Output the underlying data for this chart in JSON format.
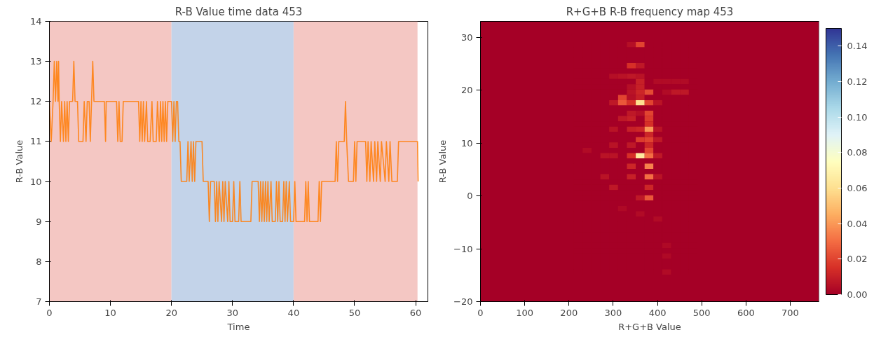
{
  "chart_data": [
    {
      "type": "line",
      "title": "R-B Value time data 453",
      "xlabel": "Time",
      "ylabel": "R-B Value",
      "xlim": [
        0,
        62
      ],
      "ylim": [
        7,
        14
      ],
      "xticks": [
        0,
        10,
        20,
        30,
        40,
        50,
        60
      ],
      "yticks": [
        7,
        8,
        9,
        10,
        11,
        12,
        13,
        14
      ],
      "grid": false,
      "bands": [
        {
          "axis": "x",
          "from": 0,
          "to": 20,
          "color": "#f4c7c3"
        },
        {
          "axis": "x",
          "from": 20,
          "to": 40,
          "color": "#c3d3e9"
        },
        {
          "axis": "x",
          "from": 40,
          "to": 60.3,
          "color": "#f4c7c3"
        }
      ],
      "series": [
        {
          "color": "#ff7f0e",
          "x": [
            0,
            0.3,
            0.6,
            0.8,
            1.0,
            1.2,
            1.4,
            1.5,
            1.6,
            1.8,
            2.0,
            2.3,
            2.5,
            2.7,
            2.9,
            3.1,
            3.3,
            3.8,
            4.0,
            4.2,
            4.6,
            4.8,
            5.5,
            5.7,
            6.0,
            6.2,
            6.5,
            6.7,
            6.9,
            7.1,
            7.3,
            9.0,
            9.2,
            9.3,
            11.0,
            11.2,
            11.4,
            11.6,
            11.9,
            12.1,
            14.6,
            14.8,
            15.0,
            15.2,
            15.4,
            15.6,
            15.9,
            16.1,
            16.5,
            16.8,
            17.0,
            17.5,
            17.7,
            18.0,
            18.2,
            18.4,
            18.6,
            18.8,
            19.0,
            19.2,
            19.4,
            20.0,
            20.2,
            20.4,
            20.6,
            20.8,
            21.0,
            21.2,
            21.4,
            21.6,
            22.5,
            22.7,
            22.9,
            23.2,
            23.4,
            23.6,
            23.8,
            24.0,
            25.0,
            25.2,
            26.0,
            26.2,
            26.4,
            27.0,
            27.2,
            27.4,
            27.6,
            27.8,
            28.2,
            28.4,
            28.6,
            28.8,
            29.2,
            29.4,
            29.6,
            30.0,
            30.2,
            30.4,
            31.0,
            31.2,
            31.4,
            33.0,
            33.2,
            34.2,
            34.4,
            34.6,
            34.8,
            35.0,
            35.2,
            35.4,
            35.6,
            35.8,
            36.0,
            36.3,
            36.5,
            37.0,
            37.2,
            37.4,
            37.6,
            37.8,
            38.2,
            38.4,
            38.6,
            38.8,
            39.0,
            39.3,
            39.5,
            40.0,
            40.2,
            40.4,
            41.8,
            42.0,
            42.2,
            42.4,
            42.6,
            44.0,
            44.2,
            44.4,
            44.6,
            45.5,
            46.8,
            47.0,
            47.2,
            47.4,
            48.3,
            48.5,
            48.7,
            49.0,
            49.8,
            50.0,
            50.2,
            50.4,
            51.8,
            52.0,
            52.2,
            52.5,
            52.7,
            53.1,
            53.3,
            53.6,
            53.8,
            54.2,
            54.4,
            55.0,
            55.2,
            55.6,
            55.8,
            56.1,
            57.0,
            57.2,
            60.3,
            60.4
          ],
          "values": [
            12,
            11,
            12,
            13,
            12,
            13,
            12,
            13,
            12,
            11,
            12,
            11,
            12,
            11,
            12,
            11,
            12,
            12,
            13,
            12,
            12,
            11,
            11,
            12,
            11,
            12,
            12,
            11,
            12,
            13,
            12,
            12,
            11,
            12,
            12,
            11,
            12,
            11,
            11,
            12,
            12,
            11,
            12,
            11,
            12,
            11,
            12,
            11,
            11,
            12,
            11,
            11,
            12,
            11,
            12,
            11,
            12,
            11,
            12,
            11,
            12,
            12,
            11,
            12,
            11,
            12,
            12,
            11,
            11,
            10,
            10,
            11,
            10,
            11,
            10,
            11,
            10,
            11,
            11,
            10,
            10,
            9,
            10,
            10,
            9,
            10,
            9,
            10,
            9,
            10,
            9,
            10,
            9,
            10,
            9,
            9,
            10,
            9,
            9,
            10,
            9,
            9,
            10,
            10,
            9,
            10,
            9,
            10,
            9,
            10,
            9,
            10,
            9,
            10,
            9,
            9,
            10,
            9,
            10,
            9,
            9,
            10,
            9,
            10,
            9,
            10,
            9,
            9,
            10,
            9,
            9,
            10,
            9,
            10,
            9,
            9,
            10,
            9,
            10,
            10,
            10,
            11,
            10,
            11,
            11,
            12,
            11,
            10,
            10,
            11,
            10,
            11,
            11,
            10,
            11,
            10,
            11,
            10,
            11,
            10,
            11,
            10,
            11,
            10,
            11,
            10,
            11,
            10,
            10,
            11,
            11,
            10
          ]
        }
      ]
    },
    {
      "type": "heatmap",
      "title": "R+G+B R-B frequency map 453",
      "xlabel": "R+G+B Value",
      "ylabel": "R-B Value",
      "xlim": [
        0,
        765
      ],
      "ylim": [
        -20,
        33
      ],
      "xticks": [
        0,
        100,
        200,
        300,
        400,
        500,
        600,
        700
      ],
      "yticks": [
        {
          "value": -20,
          "label": "−20"
        },
        {
          "value": -10,
          "label": "−10"
        },
        0,
        10,
        20,
        30
      ],
      "clim": [
        0,
        0.15
      ],
      "cticks": [
        {
          "value": 0,
          "label": "0.00"
        },
        {
          "value": 0.02,
          "label": "0.02"
        },
        {
          "value": 0.04,
          "label": "0.04"
        },
        {
          "value": 0.06,
          "label": "0.06"
        },
        {
          "value": 0.08,
          "label": "0.08"
        },
        {
          "value": 0.1,
          "label": "0.10"
        },
        {
          "value": 0.12,
          "label": "0.12"
        },
        {
          "value": 0.14,
          "label": "0.14"
        }
      ],
      "x": [
        221,
        241,
        261,
        281,
        301,
        321,
        341,
        361,
        381,
        401,
        421,
        441,
        461,
        481
      ],
      "y": [
        28.6,
        27.6,
        26.6,
        25.6,
        24.6,
        23.6,
        22.6,
        21.6,
        20.6,
        19.6,
        18.6,
        17.6,
        16.6,
        15.6,
        14.6,
        13.6,
        12.6,
        11.6,
        10.6,
        9.6,
        8.6,
        7.6,
        6.6,
        5.6,
        4.6,
        3.6,
        2.6,
        1.6,
        0.6,
        -0.4,
        -1.4,
        -2.4,
        -3.4,
        -4.4,
        -5.4,
        -6.4,
        -7.4,
        -8.4,
        -9.4,
        -10.4,
        -11.4,
        -12.4,
        -13.4,
        -14.4
      ],
      "cells": [
        [
          0,
          0,
          0,
          0,
          0,
          0,
          0.005,
          0.02,
          0,
          0,
          0,
          0,
          0,
          0
        ],
        [
          0,
          0,
          0,
          0,
          0,
          0,
          0,
          0,
          0,
          0,
          0,
          0,
          0,
          0
        ],
        [
          0,
          0,
          0,
          0,
          0,
          0,
          0,
          0,
          0,
          0,
          0,
          0,
          0,
          0
        ],
        [
          0,
          0,
          0,
          0,
          0,
          0,
          0,
          0,
          0,
          0,
          0,
          0,
          0,
          0
        ],
        [
          0,
          0,
          0,
          0,
          0,
          0,
          0.015,
          0.008,
          0,
          0,
          0,
          0,
          0,
          0
        ],
        [
          0,
          0,
          0,
          0,
          0,
          0,
          0,
          0,
          0,
          0,
          0,
          0,
          0,
          0
        ],
        [
          0,
          0,
          0,
          0,
          0.005,
          0.006,
          0.008,
          0.006,
          0,
          0,
          0,
          0,
          0,
          0
        ],
        [
          0,
          0,
          0,
          0,
          0,
          0,
          0,
          0.01,
          0,
          0.004,
          0.004,
          0.004,
          0.004,
          0
        ],
        [
          0,
          0,
          0,
          0,
          0,
          0,
          0.005,
          0.01,
          0,
          0,
          0,
          0,
          0,
          0
        ],
        [
          0,
          0,
          0,
          0,
          0,
          0,
          0.006,
          0.012,
          0.022,
          0,
          0.004,
          0.008,
          0.008,
          0
        ],
        [
          0,
          0,
          0,
          0,
          0,
          0.02,
          0.005,
          0.01,
          0,
          0,
          0,
          0,
          0,
          0
        ],
        [
          0,
          0,
          0,
          0,
          0.008,
          0.025,
          0.015,
          0.06,
          0.02,
          0.006,
          0,
          0,
          0,
          0
        ],
        [
          0,
          0,
          0,
          0,
          0,
          0,
          0,
          0,
          0,
          0,
          0,
          0,
          0,
          0
        ],
        [
          0,
          0,
          0,
          0,
          0,
          0,
          0.008,
          0.005,
          0.02,
          0,
          0,
          0,
          0,
          0
        ],
        [
          0,
          0,
          0,
          0,
          0,
          0.008,
          0.01,
          0,
          0.018,
          0,
          0,
          0,
          0,
          0
        ],
        [
          0,
          0,
          0,
          0,
          0,
          0,
          0,
          0,
          0.015,
          0,
          0,
          0,
          0,
          0
        ],
        [
          0,
          0,
          0,
          0,
          0.006,
          0,
          0.01,
          0.012,
          0.04,
          0.006,
          0,
          0,
          0,
          0
        ],
        [
          0,
          0,
          0,
          0,
          0,
          0,
          0,
          0,
          0.012,
          0,
          0,
          0,
          0,
          0
        ],
        [
          0,
          0,
          0,
          0,
          0,
          0,
          0,
          0.018,
          0.02,
          0.008,
          0,
          0,
          0,
          0
        ],
        [
          0,
          0,
          0,
          0,
          0.006,
          0,
          0.008,
          0,
          0.012,
          0,
          0,
          0,
          0,
          0
        ],
        [
          0,
          0.004,
          0,
          0,
          0,
          0,
          0,
          0,
          0.02,
          0,
          0,
          0,
          0,
          0
        ],
        [
          0,
          0,
          0,
          0.006,
          0.006,
          0,
          0.015,
          0.065,
          0.03,
          0.008,
          0,
          0,
          0,
          0
        ],
        [
          0,
          0,
          0,
          0,
          0,
          0,
          0,
          0,
          0,
          0,
          0,
          0,
          0,
          0
        ],
        [
          0,
          0,
          0,
          0,
          0,
          0,
          0.012,
          0,
          0.035,
          0,
          0,
          0,
          0,
          0
        ],
        [
          0,
          0,
          0,
          0,
          0,
          0,
          0,
          0,
          0,
          0,
          0,
          0,
          0,
          0
        ],
        [
          0,
          0,
          0,
          0.006,
          0,
          0,
          0.01,
          0,
          0.03,
          0.006,
          0,
          0,
          0,
          0
        ],
        [
          0,
          0,
          0,
          0,
          0,
          0,
          0,
          0,
          0,
          0,
          0,
          0,
          0,
          0
        ],
        [
          0,
          0,
          0,
          0,
          0.008,
          0,
          0,
          0,
          0.012,
          0,
          0,
          0,
          0,
          0
        ],
        [
          0,
          0,
          0,
          0,
          0,
          0,
          0,
          0,
          0,
          0,
          0,
          0,
          0,
          0
        ],
        [
          0,
          0,
          0,
          0,
          0,
          0,
          0,
          0.008,
          0.025,
          0,
          0,
          0,
          0,
          0
        ],
        [
          0,
          0,
          0,
          0,
          0,
          0,
          0,
          0,
          0,
          0,
          0,
          0,
          0,
          0
        ],
        [
          0,
          0,
          0,
          0,
          0,
          0.003,
          0,
          0,
          0,
          0,
          0,
          0,
          0,
          0
        ],
        [
          0,
          0,
          0,
          0,
          0,
          0,
          0,
          0.004,
          0,
          0,
          0,
          0,
          0,
          0
        ],
        [
          0,
          0,
          0,
          0,
          0,
          0,
          0,
          0,
          0,
          0.004,
          0,
          0,
          0,
          0
        ],
        [
          0,
          0,
          0,
          0,
          0,
          0,
          0,
          0,
          0,
          0,
          0,
          0,
          0,
          0
        ],
        [
          0,
          0,
          0,
          0,
          0,
          0,
          0,
          0,
          0,
          0,
          0,
          0,
          0,
          0
        ],
        [
          0,
          0,
          0,
          0,
          0,
          0,
          0,
          0,
          0,
          0,
          0,
          0,
          0,
          0
        ],
        [
          0,
          0,
          0,
          0,
          0,
          0,
          0,
          0,
          0,
          0,
          0,
          0,
          0,
          0
        ],
        [
          0,
          0,
          0,
          0,
          0,
          0,
          0,
          0,
          0,
          0,
          0.003,
          0,
          0,
          0
        ],
        [
          0,
          0,
          0,
          0,
          0,
          0,
          0,
          0,
          0,
          0,
          0,
          0,
          0,
          0
        ],
        [
          0,
          0,
          0,
          0,
          0,
          0,
          0,
          0,
          0,
          0,
          0.003,
          0,
          0,
          0
        ],
        [
          0,
          0,
          0,
          0,
          0,
          0,
          0,
          0,
          0,
          0,
          0,
          0,
          0,
          0
        ],
        [
          0,
          0,
          0,
          0,
          0,
          0,
          0,
          0,
          0,
          0,
          0,
          0,
          0,
          0
        ],
        [
          0,
          0,
          0,
          0,
          0,
          0,
          0,
          0,
          0,
          0,
          0.004,
          0,
          0,
          0
        ]
      ]
    }
  ]
}
